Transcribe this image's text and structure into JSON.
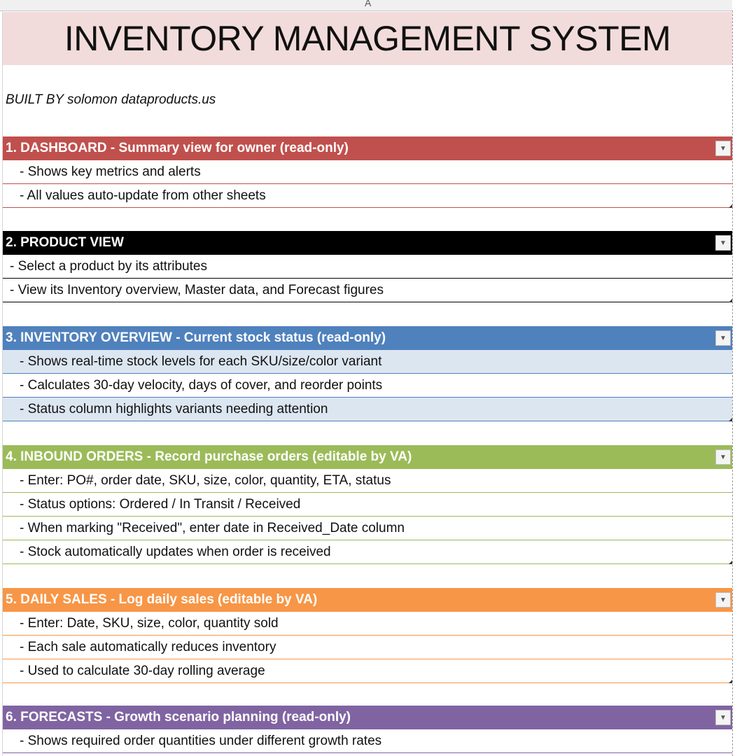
{
  "sheet": {
    "column_label": "A"
  },
  "title": "INVENTORY MANAGEMENT SYSTEM",
  "built_by": "BUILT BY solomon dataproducts.us",
  "sections": [
    {
      "header": "1. DASHBOARD - Summary view for owner (read-only)",
      "color": "#c0504d",
      "stripe": "",
      "indent": true,
      "items": [
        "- Shows key metrics and alerts",
        "- All values auto-update from other sheets"
      ]
    },
    {
      "header": "2. PRODUCT VIEW",
      "color": "#000000",
      "stripe": "",
      "indent": false,
      "items": [
        "- Select a product by its attributes",
        "- View its Inventory overview, Master data, and Forecast figures"
      ]
    },
    {
      "header": "3. INVENTORY OVERVIEW - Current stock status (read-only)",
      "color": "#4f81bd",
      "stripe": "#dce6f1",
      "indent": true,
      "items": [
        "- Shows real-time stock levels for each SKU/size/color variant",
        "- Calculates 30-day velocity, days of cover, and reorder points",
        "- Status column highlights variants needing attention"
      ]
    },
    {
      "header": "4. INBOUND ORDERS - Record purchase orders (editable by VA)",
      "color": "#9bbb59",
      "stripe": "",
      "indent": true,
      "items": [
        "- Enter: PO#, order date, SKU, size, color, quantity, ETA, status",
        "- Status options: Ordered / In Transit / Received",
        "- When marking \"Received\", enter date in Received_Date column",
        "- Stock automatically updates when order is received"
      ]
    },
    {
      "header": "5. DAILY SALES - Log daily sales (editable by VA)",
      "color": "#f79646",
      "stripe": "",
      "indent": true,
      "items": [
        "- Enter: Date, SKU, size, color, quantity sold",
        "- Each sale automatically reduces inventory",
        "- Used to calculate 30-day rolling average"
      ]
    },
    {
      "header": "6. FORECASTS - Growth scenario planning (read-only)",
      "color": "#8064a2",
      "stripe": "",
      "indent": true,
      "items": [
        "- Shows required order quantities under different growth rates"
      ]
    }
  ],
  "icons": {
    "filter": "dropdown-arrow-icon",
    "resize": "table-resize-handle-icon"
  }
}
